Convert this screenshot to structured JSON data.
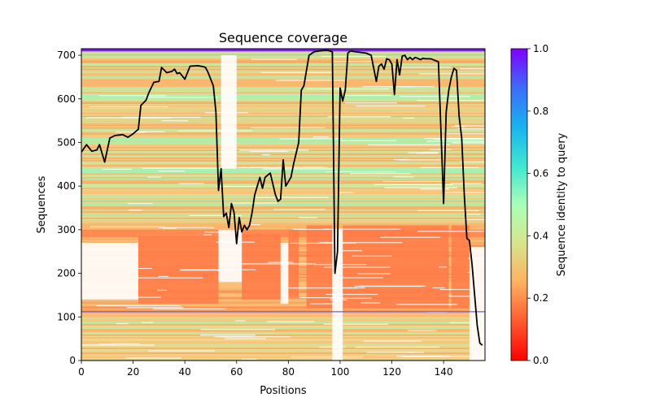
{
  "chart_data": {
    "type": "heatmap",
    "title": "Sequence coverage",
    "xlabel": "Positions",
    "ylabel": "Sequences",
    "xlim": [
      0,
      156
    ],
    "ylim": [
      0,
      715
    ],
    "xticks": [
      0,
      20,
      40,
      60,
      80,
      100,
      120,
      140
    ],
    "yticks": [
      0,
      100,
      200,
      300,
      400,
      500,
      600,
      700
    ],
    "colorbar": {
      "label": "Sequence identity to query",
      "range": [
        0.0,
        1.0
      ],
      "ticks": [
        "0.0",
        "0.2",
        "0.4",
        "0.6",
        "0.8",
        "1.0"
      ],
      "colormap": "rainbow_r"
    },
    "coverage_line": {
      "name": "coverage",
      "color": "#000000",
      "x": [
        0,
        2,
        4,
        6,
        7,
        9,
        11,
        13,
        16,
        18,
        20,
        22,
        23,
        25,
        26,
        28,
        30,
        31,
        33,
        35,
        36,
        37,
        38,
        40,
        42,
        45,
        47,
        48,
        49,
        51,
        52,
        53,
        54,
        55,
        56,
        57,
        58,
        59,
        60,
        61,
        62,
        63,
        64,
        65,
        66,
        67,
        69,
        70,
        71,
        73,
        75,
        76,
        77,
        78,
        79,
        81,
        82,
        84,
        85,
        86,
        88,
        90,
        92,
        95,
        97,
        98,
        99,
        100,
        101,
        102,
        103,
        104,
        106,
        110,
        112,
        114,
        115,
        116,
        117,
        118,
        119,
        120,
        121,
        122,
        123,
        124,
        125,
        126,
        127,
        128,
        129,
        130,
        131,
        132,
        133,
        135,
        138,
        140,
        141,
        142,
        143,
        144,
        145,
        146,
        147,
        148,
        149,
        150,
        151,
        152,
        153,
        154,
        155
      ],
      "y": [
        478,
        495,
        480,
        483,
        495,
        455,
        510,
        516,
        518,
        512,
        520,
        530,
        585,
        597,
        613,
        638,
        640,
        672,
        660,
        663,
        668,
        658,
        660,
        645,
        675,
        676,
        674,
        672,
        660,
        630,
        570,
        390,
        440,
        330,
        338,
        305,
        360,
        340,
        268,
        328,
        295,
        310,
        300,
        310,
        340,
        380,
        420,
        395,
        420,
        430,
        380,
        365,
        370,
        460,
        400,
        420,
        450,
        500,
        620,
        630,
        700,
        708,
        710,
        712,
        708,
        200,
        250,
        625,
        595,
        620,
        705,
        710,
        708,
        705,
        700,
        640,
        675,
        680,
        668,
        692,
        690,
        680,
        610,
        690,
        655,
        698,
        700,
        690,
        695,
        690,
        695,
        693,
        690,
        693,
        692,
        692,
        685,
        360,
        570,
        620,
        650,
        670,
        665,
        560,
        510,
        380,
        280,
        275,
        220,
        150,
        80,
        40,
        35
      ]
    }
  }
}
